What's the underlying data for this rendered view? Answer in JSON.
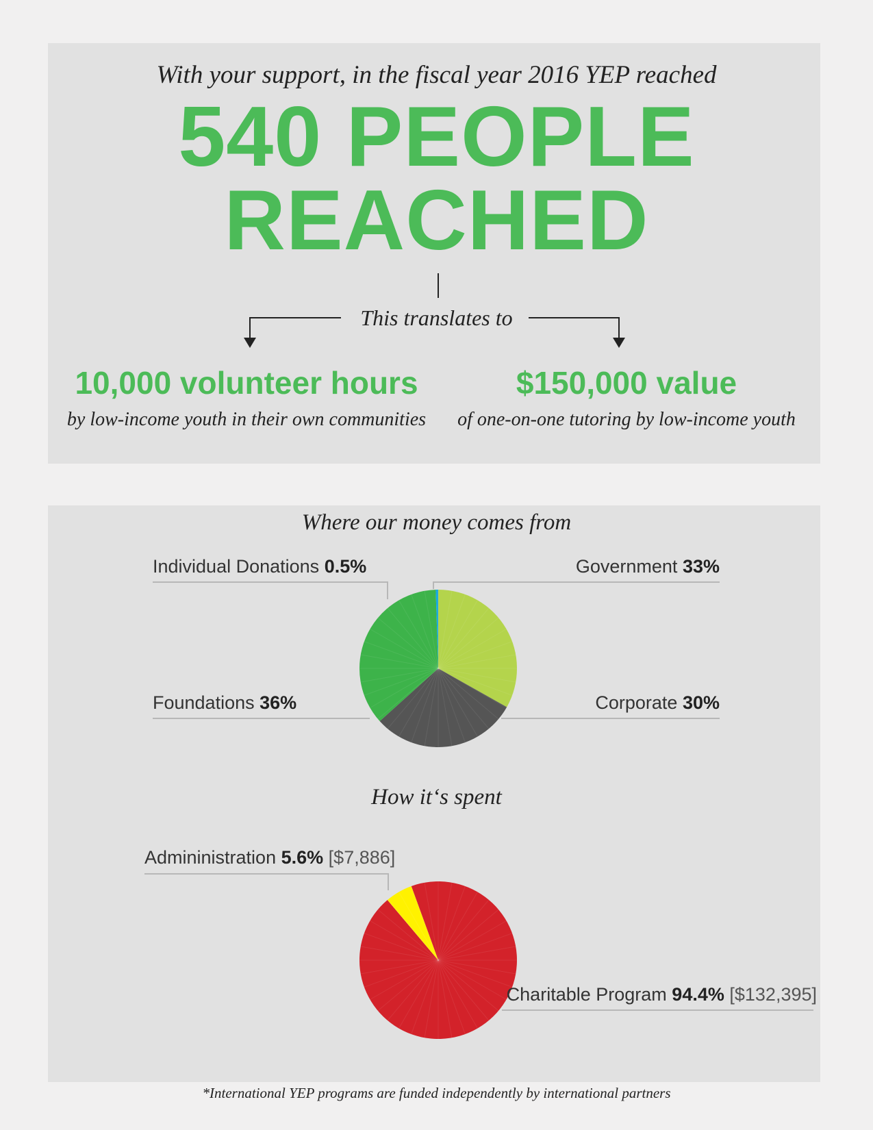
{
  "intro": "With your support, in the fiscal year 2016 YEP reached",
  "headline_line1": "540 PEOPLE",
  "headline_line2": "REACHED",
  "translates": "This translates to",
  "stat_left": {
    "value": "10,000 volunteer hours",
    "desc": "by low-income youth in their own communities"
  },
  "stat_right": {
    "value": "$150,000 value",
    "desc": "of one-on-one tutoring by low-income youth"
  },
  "money_title": "Where our money comes from",
  "spent_title": "How it‘s spent",
  "footnote": "*International YEP programs are funded independently by international partners",
  "colors": {
    "green_text": "#4cbb58",
    "panel": "#e1e1e1",
    "page": "#f1f0f0",
    "government": "#b4d44c",
    "corporate": "#555555",
    "foundations": "#3db34a",
    "individual": "#18a9e2",
    "administration": "#fff200",
    "charitable": "#d3222a"
  },
  "chart_data": [
    {
      "type": "pie",
      "title": "Where our money comes from",
      "slices": [
        {
          "label": "Government",
          "value": 33,
          "display": "33%"
        },
        {
          "label": "Corporate",
          "value": 30,
          "display": "30%"
        },
        {
          "label": "Foundations",
          "value": 36,
          "display": "36%"
        },
        {
          "label": "Individual Donations",
          "value": 0.5,
          "display": "0.5%"
        }
      ]
    },
    {
      "type": "pie",
      "title": "How it‘s spent",
      "slices": [
        {
          "label": "Charitable Program",
          "value": 94.4,
          "display": "94.4%",
          "amount": "[$132,395]"
        },
        {
          "label": "Admininistration",
          "value": 5.6,
          "display": "5.6%",
          "amount": "[$7,886]"
        }
      ]
    }
  ]
}
